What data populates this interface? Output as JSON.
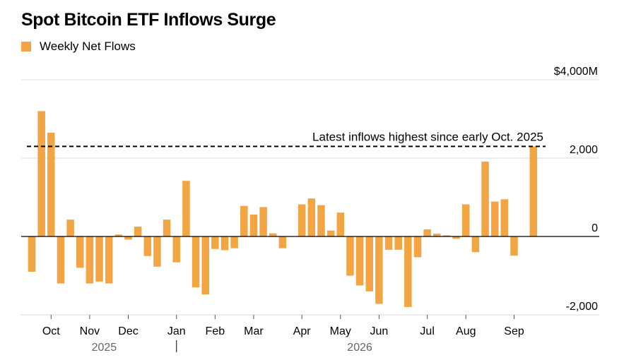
{
  "chart_data": {
    "type": "bar",
    "title": "Spot Bitcoin ETF Inflows Surge",
    "series": [
      {
        "name": "Weekly Net Flows",
        "color": "#f3a443",
        "values": [
          -900,
          3200,
          2650,
          -1200,
          430,
          -800,
          -1200,
          -1150,
          -1200,
          50,
          -80,
          250,
          -500,
          -770,
          430,
          -660,
          1420,
          -1300,
          -1480,
          -320,
          -350,
          -300,
          780,
          560,
          750,
          80,
          -300,
          0,
          820,
          970,
          800,
          150,
          610,
          -1000,
          -1250,
          -1400,
          -1720,
          -340,
          -340,
          -1800,
          -530,
          180,
          70,
          30,
          -60,
          820,
          -400,
          1910,
          890,
          950,
          -490,
          0,
          2300
        ]
      }
    ],
    "y_ticks": [
      {
        "value": 4000,
        "label": "$4,000M"
      },
      {
        "value": 2000,
        "label": "2,000"
      },
      {
        "value": 0,
        "label": "0"
      },
      {
        "value": -2000,
        "label": "-2,000"
      }
    ],
    "ylim": [
      -2000,
      4000
    ],
    "x_ticks": [
      {
        "index": 2,
        "label": "Oct"
      },
      {
        "index": 6,
        "label": "Nov"
      },
      {
        "index": 10,
        "label": "Dec"
      },
      {
        "index": 15,
        "label": "Jan"
      },
      {
        "index": 19,
        "label": "Feb"
      },
      {
        "index": 23,
        "label": "Mar"
      },
      {
        "index": 28,
        "label": "Apr"
      },
      {
        "index": 32,
        "label": "May"
      },
      {
        "index": 36,
        "label": "Jun"
      },
      {
        "index": 41,
        "label": "Jul"
      },
      {
        "index": 45,
        "label": "Aug"
      },
      {
        "index": 50,
        "label": "Sep"
      }
    ],
    "years": [
      {
        "label": "2025",
        "index": 7.5
      },
      {
        "label": "2026",
        "index": 34
      }
    ],
    "year_divider_index": 15,
    "reference_line": {
      "value": 2300,
      "label": "Latest inflows highest since early Oct. 2025"
    },
    "grid": true,
    "legend_position": "top-left"
  }
}
